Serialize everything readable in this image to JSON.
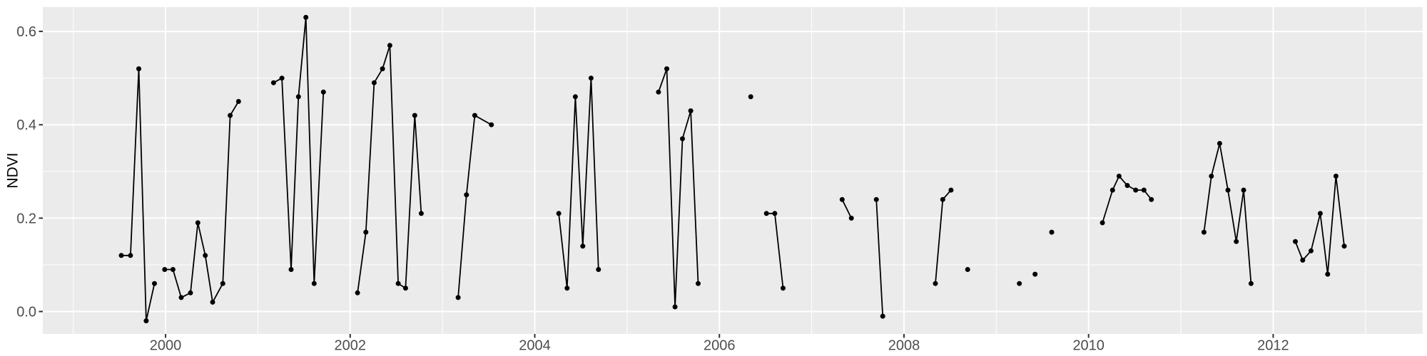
{
  "figure": {
    "kind": "ggplot-style time series plot",
    "background": "#FFFFFF"
  },
  "colors": {
    "panel_bg": "#EBEBEB",
    "grid": "#FFFFFF",
    "line": "#000000",
    "point": "#000000",
    "tick": "#333333",
    "tick_label": "#4D4D4D",
    "axis_title": "#000000"
  },
  "chart_data": {
    "type": "line",
    "title": "",
    "xlabel": "",
    "ylabel": "NDVI",
    "legend_position": "none",
    "grid": true,
    "x_domain": [
      1998.67,
      2013.62
    ],
    "y_domain": [
      -0.048,
      0.652
    ],
    "x_major_ticks": [
      2000,
      2002,
      2004,
      2006,
      2008,
      2010,
      2012
    ],
    "x_tick_labels": [
      "2000",
      "2002",
      "2004",
      "2006",
      "2008",
      "2010",
      "2012"
    ],
    "x_minor_ticks": [
      1999,
      2001,
      2003,
      2005,
      2007,
      2009,
      2011,
      2013
    ],
    "y_major_ticks": [
      0.0,
      0.2,
      0.4,
      0.6
    ],
    "y_tick_labels": [
      "0.0",
      "0.2",
      "0.4",
      "0.6"
    ],
    "y_minor_ticks": [
      0.1,
      0.3,
      0.5
    ],
    "series": [
      {
        "name": "NDVI",
        "marker": "point",
        "segments": [
          [
            [
              1999.52,
              0.12
            ],
            [
              1999.62,
              0.12
            ],
            [
              1999.71,
              0.52
            ],
            [
              1999.79,
              -0.02
            ],
            [
              1999.88,
              0.06
            ]
          ],
          [
            [
              1999.99,
              0.09
            ],
            [
              2000.08,
              0.09
            ],
            [
              2000.17,
              0.03
            ],
            [
              2000.27,
              0.04
            ],
            [
              2000.35,
              0.19
            ],
            [
              2000.43,
              0.12
            ],
            [
              2000.51,
              0.02
            ],
            [
              2000.62,
              0.06
            ],
            [
              2000.7,
              0.42
            ],
            [
              2000.79,
              0.45
            ]
          ],
          [
            [
              2001.17,
              0.49
            ],
            [
              2001.26,
              0.5
            ],
            [
              2001.36,
              0.09
            ],
            [
              2001.44,
              0.46
            ],
            [
              2001.52,
              0.63
            ],
            [
              2001.61,
              0.06
            ],
            [
              2001.71,
              0.47
            ]
          ],
          [
            [
              2002.08,
              0.04
            ],
            [
              2002.17,
              0.17
            ],
            [
              2002.26,
              0.49
            ],
            [
              2002.35,
              0.52
            ],
            [
              2002.43,
              0.57
            ],
            [
              2002.52,
              0.06
            ],
            [
              2002.6,
              0.05
            ],
            [
              2002.7,
              0.42
            ],
            [
              2002.77,
              0.21
            ]
          ],
          [
            [
              2003.17,
              0.03
            ],
            [
              2003.26,
              0.25
            ],
            [
              2003.35,
              0.42
            ],
            [
              2003.53,
              0.4
            ]
          ],
          [
            [
              2004.26,
              0.21
            ],
            [
              2004.35,
              0.05
            ],
            [
              2004.44,
              0.46
            ],
            [
              2004.52,
              0.14
            ],
            [
              2004.61,
              0.5
            ],
            [
              2004.69,
              0.09
            ]
          ],
          [
            [
              2005.34,
              0.47
            ],
            [
              2005.43,
              0.52
            ],
            [
              2005.52,
              0.01
            ],
            [
              2005.6,
              0.37
            ],
            [
              2005.69,
              0.43
            ],
            [
              2005.77,
              0.06
            ]
          ],
          [
            [
              2006.34,
              0.46
            ]
          ],
          [
            [
              2006.51,
              0.21
            ],
            [
              2006.6,
              0.21
            ],
            [
              2006.69,
              0.05
            ]
          ],
          [
            [
              2007.33,
              0.24
            ],
            [
              2007.43,
              0.2
            ]
          ],
          [
            [
              2007.7,
              0.24
            ],
            [
              2007.77,
              -0.01
            ]
          ],
          [
            [
              2008.34,
              0.06
            ],
            [
              2008.42,
              0.24
            ],
            [
              2008.51,
              0.26
            ]
          ],
          [
            [
              2008.69,
              0.09
            ]
          ],
          [
            [
              2009.25,
              0.06
            ]
          ],
          [
            [
              2009.42,
              0.08
            ]
          ],
          [
            [
              2009.6,
              0.17
            ]
          ],
          [
            [
              2010.15,
              0.19
            ],
            [
              2010.26,
              0.26
            ],
            [
              2010.33,
              0.29
            ],
            [
              2010.42,
              0.27
            ],
            [
              2010.51,
              0.26
            ],
            [
              2010.6,
              0.26
            ],
            [
              2010.68,
              0.24
            ]
          ],
          [
            [
              2011.25,
              0.17
            ],
            [
              2011.33,
              0.29
            ],
            [
              2011.42,
              0.36
            ],
            [
              2011.51,
              0.26
            ],
            [
              2011.6,
              0.15
            ],
            [
              2011.68,
              0.26
            ],
            [
              2011.76,
              0.06
            ]
          ],
          [
            [
              2012.24,
              0.15
            ],
            [
              2012.32,
              0.11
            ],
            [
              2012.41,
              0.13
            ],
            [
              2012.51,
              0.21
            ],
            [
              2012.59,
              0.08
            ],
            [
              2012.68,
              0.29
            ],
            [
              2012.77,
              0.14
            ]
          ]
        ]
      }
    ]
  }
}
